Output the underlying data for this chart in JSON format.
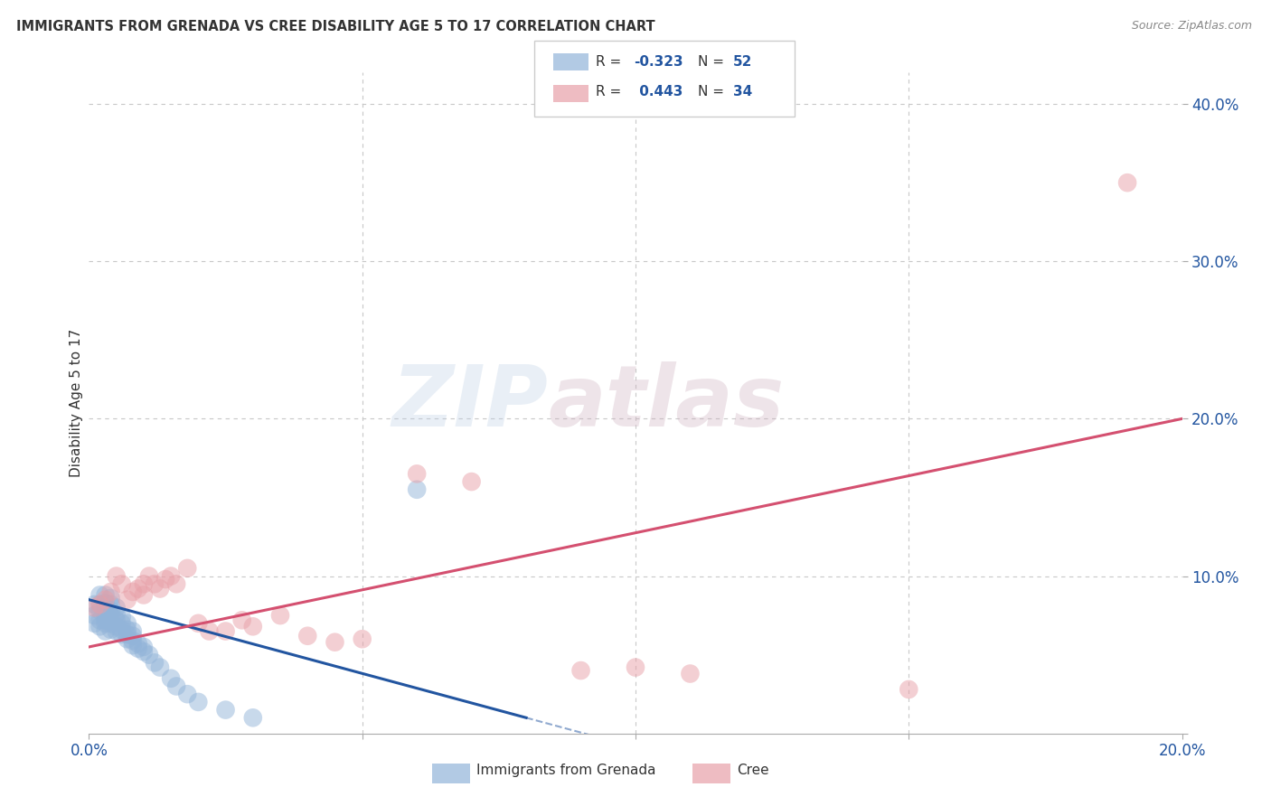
{
  "title": "IMMIGRANTS FROM GRENADA VS CREE DISABILITY AGE 5 TO 17 CORRELATION CHART",
  "source": "Source: ZipAtlas.com",
  "ylabel": "Disability Age 5 to 17",
  "xlim": [
    0.0,
    0.2
  ],
  "ylim": [
    0.0,
    0.42
  ],
  "blue_R": "-0.323",
  "blue_N": "52",
  "pink_R": "0.443",
  "pink_N": "34",
  "blue_color": "#92b4d9",
  "pink_color": "#e8a0a8",
  "blue_line_color": "#2255a0",
  "pink_line_color": "#d45070",
  "background_color": "#ffffff",
  "grid_color": "#c8c8c8",
  "blue_scatter_x": [
    0.001,
    0.001,
    0.001,
    0.002,
    0.002,
    0.002,
    0.002,
    0.002,
    0.003,
    0.003,
    0.003,
    0.003,
    0.003,
    0.003,
    0.003,
    0.004,
    0.004,
    0.004,
    0.004,
    0.004,
    0.004,
    0.005,
    0.005,
    0.005,
    0.005,
    0.005,
    0.006,
    0.006,
    0.006,
    0.006,
    0.007,
    0.007,
    0.007,
    0.007,
    0.008,
    0.008,
    0.008,
    0.008,
    0.009,
    0.009,
    0.01,
    0.01,
    0.011,
    0.012,
    0.013,
    0.015,
    0.016,
    0.018,
    0.02,
    0.025,
    0.03,
    0.06
  ],
  "blue_scatter_y": [
    0.07,
    0.075,
    0.082,
    0.068,
    0.072,
    0.078,
    0.082,
    0.088,
    0.065,
    0.07,
    0.072,
    0.076,
    0.08,
    0.083,
    0.088,
    0.066,
    0.07,
    0.075,
    0.078,
    0.082,
    0.086,
    0.065,
    0.068,
    0.072,
    0.076,
    0.08,
    0.063,
    0.066,
    0.07,
    0.074,
    0.06,
    0.063,
    0.066,
    0.07,
    0.056,
    0.059,
    0.062,
    0.065,
    0.054,
    0.057,
    0.052,
    0.055,
    0.05,
    0.045,
    0.042,
    0.035,
    0.03,
    0.025,
    0.02,
    0.015,
    0.01,
    0.155
  ],
  "pink_scatter_x": [
    0.001,
    0.002,
    0.003,
    0.004,
    0.005,
    0.006,
    0.007,
    0.008,
    0.009,
    0.01,
    0.01,
    0.011,
    0.012,
    0.013,
    0.014,
    0.015,
    0.016,
    0.018,
    0.02,
    0.022,
    0.025,
    0.028,
    0.03,
    0.035,
    0.04,
    0.045,
    0.05,
    0.06,
    0.07,
    0.09,
    0.1,
    0.11,
    0.15,
    0.19
  ],
  "pink_scatter_y": [
    0.08,
    0.082,
    0.085,
    0.09,
    0.1,
    0.095,
    0.085,
    0.09,
    0.092,
    0.088,
    0.095,
    0.1,
    0.095,
    0.092,
    0.098,
    0.1,
    0.095,
    0.105,
    0.07,
    0.065,
    0.065,
    0.072,
    0.068,
    0.075,
    0.062,
    0.058,
    0.06,
    0.165,
    0.16,
    0.04,
    0.042,
    0.038,
    0.028,
    0.35
  ],
  "blue_line_x0": 0.0,
  "blue_line_y0": 0.085,
  "blue_line_x1": 0.08,
  "blue_line_y1": 0.01,
  "blue_line_xdash0": 0.08,
  "blue_line_ydash0": 0.01,
  "blue_line_xdash1": 0.13,
  "blue_line_ydash1": -0.037,
  "pink_line_x0": 0.0,
  "pink_line_y0": 0.055,
  "pink_line_x1": 0.2,
  "pink_line_y1": 0.2
}
